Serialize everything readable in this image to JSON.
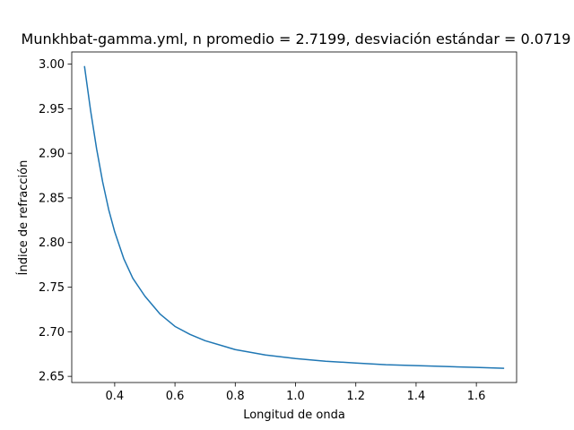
{
  "chart_data": {
    "type": "line",
    "title": "Munkhbat-gamma.yml, n promedio = 2.7199, desviación estándar = 0.0719",
    "xlabel": "Longitud de onda",
    "ylabel": "Índice de refracción",
    "xlim": [
      0.2575,
      1.7335
    ],
    "ylim": [
      2.6431,
      3.0136
    ],
    "grid": false,
    "x_ticks": [
      0.4,
      0.6,
      0.8,
      1.0,
      1.2,
      1.4,
      1.6
    ],
    "x_tick_labels": [
      "0.4",
      "0.6",
      "0.8",
      "1.0",
      "1.2",
      "1.4",
      "1.6"
    ],
    "y_ticks": [
      2.65,
      2.7,
      2.75,
      2.8,
      2.85,
      2.9,
      2.95,
      3.0
    ],
    "y_tick_labels": [
      "2.65",
      "2.70",
      "2.75",
      "2.80",
      "2.85",
      "2.90",
      "2.95",
      "3.00"
    ],
    "series": [
      {
        "color": "#1f77b4",
        "x": [
          0.3,
          0.32,
          0.34,
          0.36,
          0.38,
          0.4,
          0.43,
          0.46,
          0.5,
          0.55,
          0.6,
          0.65,
          0.7,
          0.8,
          0.9,
          1.0,
          1.1,
          1.2,
          1.3,
          1.4,
          1.5,
          1.6,
          1.69
        ],
        "values": [
          2.997,
          2.948,
          2.905,
          2.868,
          2.837,
          2.812,
          2.782,
          2.76,
          2.74,
          2.72,
          2.706,
          2.697,
          2.69,
          2.68,
          2.674,
          2.67,
          2.667,
          2.665,
          2.663,
          2.662,
          2.661,
          2.66,
          2.659
        ]
      }
    ]
  }
}
